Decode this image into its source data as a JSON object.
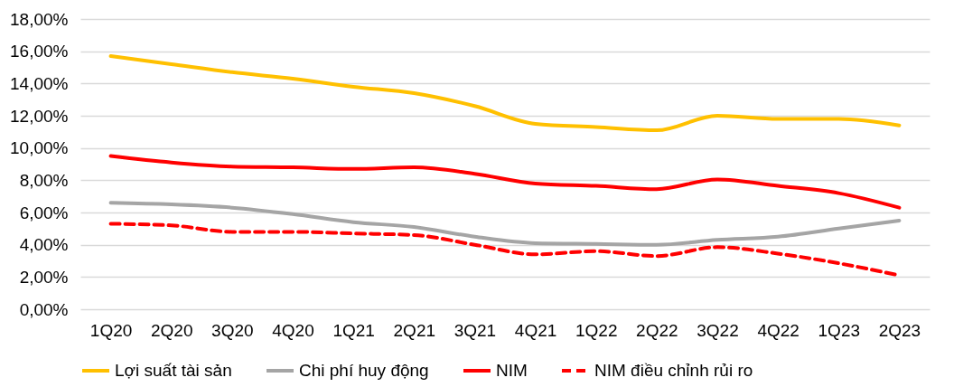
{
  "chart_data": {
    "type": "line",
    "categories": [
      "1Q20",
      "2Q20",
      "3Q20",
      "4Q20",
      "1Q21",
      "2Q21",
      "3Q21",
      "4Q21",
      "1Q22",
      "2Q22",
      "3Q22",
      "4Q22",
      "1Q23",
      "2Q23"
    ],
    "series": [
      {
        "name": "Lợi suất tài sản",
        "color": "#ffc000",
        "line_style": "solid",
        "values": [
          15.7,
          15.2,
          14.7,
          14.3,
          13.8,
          13.4,
          12.6,
          11.5,
          11.3,
          11.1,
          12.0,
          11.8,
          11.8,
          11.4
        ]
      },
      {
        "name": "Chi phí huy động",
        "color": "#a5a5a5",
        "line_style": "solid",
        "values": [
          6.6,
          6.5,
          6.3,
          5.9,
          5.4,
          5.1,
          4.5,
          4.1,
          4.05,
          4.0,
          4.3,
          4.5,
          5.0,
          5.5
        ]
      },
      {
        "name": "NIM",
        "color": "#ff0000",
        "line_style": "solid",
        "values": [
          9.5,
          9.1,
          8.85,
          8.8,
          8.7,
          8.8,
          8.4,
          7.8,
          7.65,
          7.45,
          8.05,
          7.65,
          7.2,
          6.3
        ]
      },
      {
        "name": "NIM điều chỉnh rủi ro",
        "color": "#ff0000",
        "line_style": "dashed",
        "values": [
          5.3,
          5.2,
          4.8,
          4.8,
          4.7,
          4.6,
          4.0,
          3.4,
          3.6,
          3.3,
          3.85,
          3.45,
          2.85,
          2.1
        ]
      }
    ],
    "ylim": [
      0,
      18
    ],
    "yticks": [
      {
        "value": 0,
        "label": "0,00%"
      },
      {
        "value": 2,
        "label": "2,00%"
      },
      {
        "value": 4,
        "label": "4,00%"
      },
      {
        "value": 6,
        "label": "6,00%"
      },
      {
        "value": 8,
        "label": "8,00%"
      },
      {
        "value": 10,
        "label": "10,00%"
      },
      {
        "value": 12,
        "label": "12,00%"
      },
      {
        "value": 14,
        "label": "14,00%"
      },
      {
        "value": 16,
        "label": "16,00%"
      },
      {
        "value": 18,
        "label": "18,00%"
      }
    ],
    "grid": "y",
    "legend": "bottom",
    "marker": "none"
  }
}
